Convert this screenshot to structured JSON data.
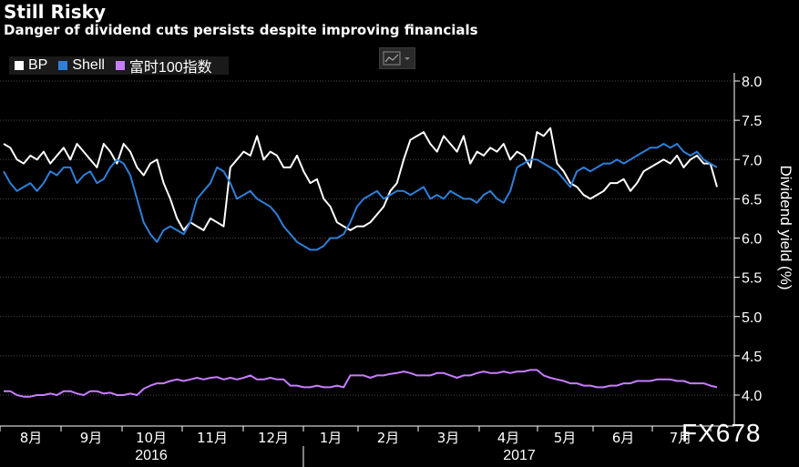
{
  "header": {
    "title": "Still Risky",
    "subtitle": "Danger of dividend cuts persists despite improving financials"
  },
  "watermark": "FX678",
  "colors": {
    "bp": "#ffffff",
    "shell": "#2f7fd8",
    "ftse": "#c77dff",
    "grid": "#4a4a4a"
  },
  "chart_data": {
    "type": "line",
    "title": "Still Risky",
    "subtitle": "Danger of dividend cuts persists despite improving financials",
    "ylabel": "Dividend yield (%)",
    "ylim": [
      3.6,
      8.4
    ],
    "y_ticks": [
      4.0,
      4.5,
      5.0,
      5.5,
      6.0,
      6.5,
      7.0,
      7.5,
      8.0
    ],
    "y_tick_labels": [
      "4.0",
      "4.5",
      "5.0",
      "5.5",
      "6.0",
      "6.5",
      "7.0",
      "7.5",
      "8.0"
    ],
    "x_month_labels": [
      "8月",
      "9月",
      "10月",
      "11月",
      "12月",
      "1月",
      "2月",
      "3月",
      "4月",
      "5月",
      "6月",
      "7月"
    ],
    "x_year_labels": [
      "2016",
      "2017"
    ],
    "legend_position": "top-left",
    "grid": true,
    "series": [
      {
        "name": "BP",
        "values": [
          7.2,
          7.15,
          7.0,
          6.95,
          7.05,
          7.0,
          7.1,
          6.95,
          7.05,
          7.15,
          7.0,
          7.2,
          7.1,
          7.0,
          6.9,
          7.2,
          7.1,
          6.95,
          7.2,
          7.1,
          6.9,
          6.8,
          6.95,
          7.0,
          6.7,
          6.5,
          6.25,
          6.1,
          6.2,
          6.15,
          6.1,
          6.25,
          6.2,
          6.15,
          6.9,
          7.0,
          7.1,
          7.05,
          7.3,
          7.0,
          7.1,
          7.05,
          6.9,
          6.9,
          7.05,
          6.85,
          6.7,
          6.75,
          6.5,
          6.4,
          6.2,
          6.15,
          6.1,
          6.15,
          6.15,
          6.2,
          6.3,
          6.4,
          6.6,
          6.7,
          7.0,
          7.25,
          7.3,
          7.35,
          7.2,
          7.1,
          7.3,
          7.2,
          7.1,
          7.3,
          6.95,
          7.1,
          7.05,
          7.15,
          7.1,
          7.2,
          7.0,
          7.1,
          7.05,
          6.9,
          7.35,
          7.3,
          7.4,
          6.95,
          6.85,
          6.7,
          6.65,
          6.55,
          6.5,
          6.55,
          6.6,
          6.7,
          6.7,
          6.75,
          6.6,
          6.7,
          6.85,
          6.9,
          6.95,
          7.0,
          6.95,
          7.05,
          6.9,
          7.0,
          7.05,
          6.95,
          6.95,
          6.65
        ]
      },
      {
        "name": "Shell",
        "values": [
          6.85,
          6.7,
          6.6,
          6.65,
          6.7,
          6.6,
          6.7,
          6.85,
          6.8,
          6.9,
          6.9,
          6.7,
          6.8,
          6.85,
          6.7,
          6.75,
          6.9,
          7.0,
          6.95,
          6.8,
          6.5,
          6.2,
          6.05,
          5.95,
          6.1,
          6.15,
          6.1,
          6.05,
          6.2,
          6.5,
          6.6,
          6.7,
          6.9,
          6.85,
          6.7,
          6.5,
          6.55,
          6.6,
          6.5,
          6.45,
          6.4,
          6.3,
          6.15,
          6.05,
          5.95,
          5.9,
          5.85,
          5.85,
          5.9,
          6.0,
          6.0,
          6.05,
          6.2,
          6.4,
          6.5,
          6.55,
          6.6,
          6.5,
          6.55,
          6.6,
          6.6,
          6.55,
          6.6,
          6.65,
          6.5,
          6.55,
          6.5,
          6.6,
          6.55,
          6.5,
          6.5,
          6.45,
          6.55,
          6.6,
          6.5,
          6.45,
          6.6,
          6.9,
          6.95,
          7.0,
          7.0,
          6.95,
          6.9,
          6.85,
          6.75,
          6.65,
          6.85,
          6.9,
          6.85,
          6.9,
          6.95,
          6.95,
          7.0,
          6.95,
          7.0,
          7.05,
          7.1,
          7.15,
          7.15,
          7.2,
          7.15,
          7.2,
          7.1,
          7.05,
          7.1,
          7.0,
          6.95,
          6.9
        ]
      },
      {
        "name": "富时100指数",
        "values": [
          4.05,
          4.05,
          4.0,
          3.98,
          3.98,
          4.0,
          4.0,
          4.02,
          4.0,
          4.05,
          4.05,
          4.02,
          4.0,
          4.05,
          4.05,
          4.02,
          4.03,
          4.0,
          4.0,
          4.02,
          4.0,
          4.08,
          4.12,
          4.15,
          4.15,
          4.18,
          4.2,
          4.18,
          4.2,
          4.22,
          4.2,
          4.22,
          4.23,
          4.2,
          4.22,
          4.2,
          4.22,
          4.25,
          4.2,
          4.2,
          4.22,
          4.2,
          4.2,
          4.12,
          4.12,
          4.1,
          4.1,
          4.12,
          4.1,
          4.1,
          4.12,
          4.1,
          4.25,
          4.25,
          4.25,
          4.22,
          4.25,
          4.25,
          4.27,
          4.28,
          4.3,
          4.28,
          4.25,
          4.25,
          4.25,
          4.28,
          4.28,
          4.25,
          4.22,
          4.25,
          4.25,
          4.28,
          4.3,
          4.28,
          4.28,
          4.3,
          4.28,
          4.3,
          4.3,
          4.32,
          4.32,
          4.25,
          4.22,
          4.2,
          4.18,
          4.15,
          4.15,
          4.12,
          4.12,
          4.1,
          4.1,
          4.12,
          4.12,
          4.15,
          4.15,
          4.18,
          4.18,
          4.18,
          4.2,
          4.2,
          4.2,
          4.18,
          4.18,
          4.15,
          4.15,
          4.15,
          4.12,
          4.1
        ]
      }
    ]
  }
}
